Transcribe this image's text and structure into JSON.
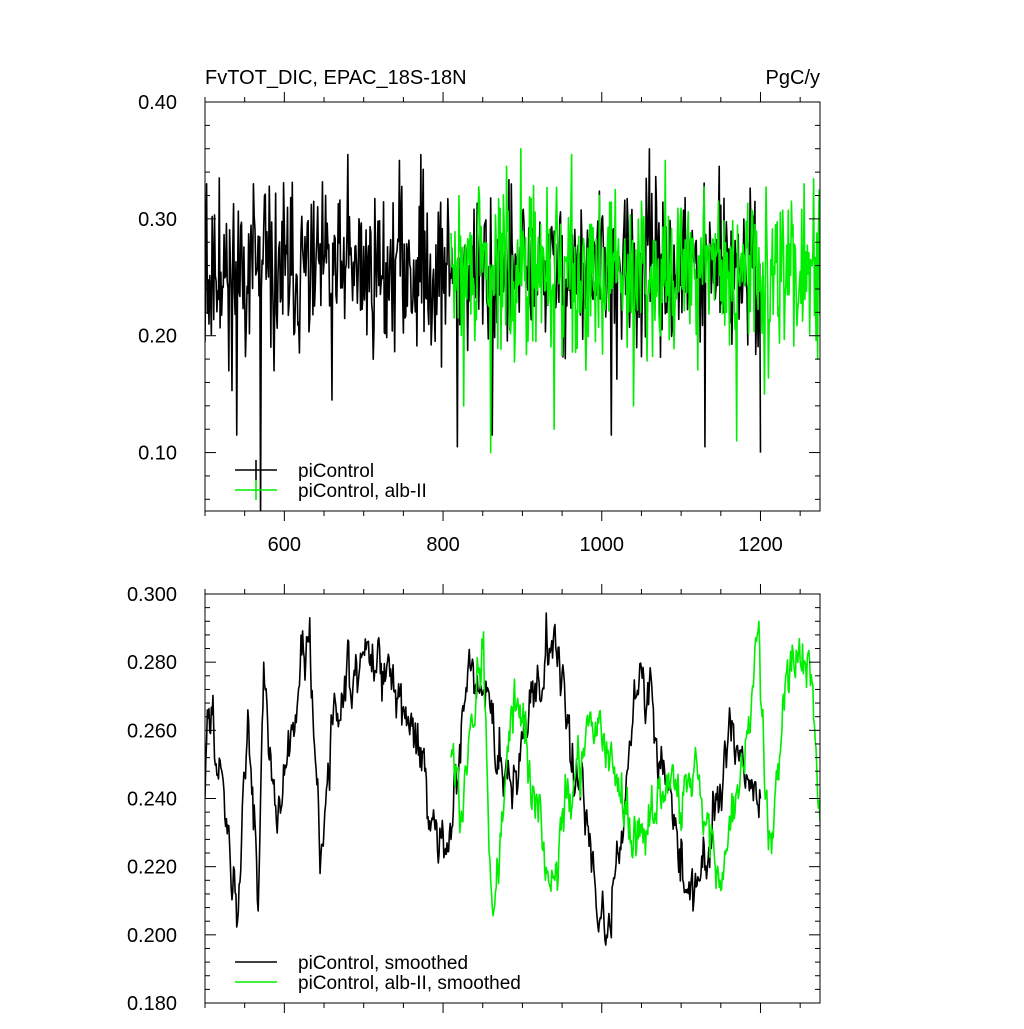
{
  "chart_data": [
    {
      "type": "line",
      "title": "FvTOT_DIC, EPAC_18S-18N",
      "units": "PgC/y",
      "xlim": [
        500,
        1275
      ],
      "ylim": [
        0.05,
        0.4
      ],
      "x_ticks": [
        600,
        800,
        1000,
        1200
      ],
      "x_tick_labels": [
        "600",
        "800",
        "1000",
        "1200"
      ],
      "y_ticks": [
        0.1,
        0.2,
        0.3,
        0.4
      ],
      "y_tick_labels": [
        "0.10",
        "0.20",
        "0.30",
        "0.40"
      ],
      "grid": false,
      "legend_placement": "bottom-left",
      "series": [
        {
          "name": "piControl",
          "color": "#000000",
          "x_range": [
            500,
            1200
          ],
          "mean": 0.255,
          "spread": 0.035,
          "seed": 11,
          "spikes": [
            {
              "x": 502,
              "y": 0.33
            },
            {
              "x": 505,
              "y": 0.21
            },
            {
              "x": 518,
              "y": 0.335
            },
            {
              "x": 530,
              "y": 0.17
            },
            {
              "x": 540,
              "y": 0.115
            },
            {
              "x": 561,
              "y": 0.33
            },
            {
              "x": 570,
              "y": 0.04
            },
            {
              "x": 575,
              "y": 0.32
            },
            {
              "x": 587,
              "y": 0.17
            },
            {
              "x": 660,
              "y": 0.145
            },
            {
              "x": 680,
              "y": 0.355
            },
            {
              "x": 745,
              "y": 0.35
            },
            {
              "x": 772,
              "y": 0.355
            },
            {
              "x": 818,
              "y": 0.105
            },
            {
              "x": 862,
              "y": 0.115
            },
            {
              "x": 1012,
              "y": 0.115
            },
            {
              "x": 1060,
              "y": 0.36
            },
            {
              "x": 1130,
              "y": 0.105
            },
            {
              "x": 1148,
              "y": 0.345
            },
            {
              "x": 1200,
              "y": 0.1
            }
          ]
        },
        {
          "name": "piControl, alb-II",
          "color": "#00ee00",
          "x_range": [
            810,
            1275
          ],
          "mean": 0.255,
          "spread": 0.035,
          "seed": 29,
          "spikes": [
            {
              "x": 826,
              "y": 0.14
            },
            {
              "x": 860,
              "y": 0.1
            },
            {
              "x": 880,
              "y": 0.345
            },
            {
              "x": 898,
              "y": 0.36
            },
            {
              "x": 940,
              "y": 0.12
            },
            {
              "x": 962,
              "y": 0.355
            },
            {
              "x": 1040,
              "y": 0.14
            },
            {
              "x": 1080,
              "y": 0.35
            },
            {
              "x": 1170,
              "y": 0.11
            },
            {
              "x": 1205,
              "y": 0.15
            },
            {
              "x": 1255,
              "y": 0.33
            },
            {
              "x": 1272,
              "y": 0.18
            }
          ]
        }
      ]
    },
    {
      "type": "line",
      "xlim": [
        500,
        1275
      ],
      "ylim": [
        0.18,
        0.3
      ],
      "x_ticks": [
        600,
        800,
        1000,
        1200
      ],
      "x_tick_labels": [],
      "y_ticks": [
        0.18,
        0.2,
        0.22,
        0.24,
        0.26,
        0.28,
        0.3
      ],
      "y_tick_labels": [
        "0.180",
        "0.200",
        "0.220",
        "0.240",
        "0.260",
        "0.280",
        "0.300"
      ],
      "grid": false,
      "legend_placement": "bottom-left",
      "series": [
        {
          "name": "piControl, smoothed",
          "color": "#000000",
          "x_range": [
            500,
            1200
          ],
          "mean": 0.25,
          "spread": 0.016,
          "seed": 47,
          "anchors": [
            {
              "x": 500,
              "y": 0.24
            },
            {
              "x": 503,
              "y": 0.266
            },
            {
              "x": 530,
              "y": 0.232
            },
            {
              "x": 541,
              "y": 0.204
            },
            {
              "x": 554,
              "y": 0.266
            },
            {
              "x": 567,
              "y": 0.207
            },
            {
              "x": 574,
              "y": 0.28
            },
            {
              "x": 590,
              "y": 0.233
            },
            {
              "x": 632,
              "y": 0.293
            },
            {
              "x": 645,
              "y": 0.218
            },
            {
              "x": 660,
              "y": 0.263
            },
            {
              "x": 705,
              "y": 0.286
            },
            {
              "x": 760,
              "y": 0.265
            },
            {
              "x": 795,
              "y": 0.224
            },
            {
              "x": 810,
              "y": 0.228
            },
            {
              "x": 832,
              "y": 0.28
            },
            {
              "x": 885,
              "y": 0.245
            },
            {
              "x": 940,
              "y": 0.29
            },
            {
              "x": 1005,
              "y": 0.197
            },
            {
              "x": 1050,
              "y": 0.278
            },
            {
              "x": 1115,
              "y": 0.207
            },
            {
              "x": 1165,
              "y": 0.262
            },
            {
              "x": 1200,
              "y": 0.24
            }
          ]
        },
        {
          "name": "piControl, alb-II, smoothed",
          "color": "#00ee00",
          "x_range": [
            810,
            1275
          ],
          "mean": 0.25,
          "spread": 0.016,
          "seed": 83,
          "anchors": [
            {
              "x": 810,
              "y": 0.252
            },
            {
              "x": 826,
              "y": 0.24
            },
            {
              "x": 850,
              "y": 0.284
            },
            {
              "x": 862,
              "y": 0.208
            },
            {
              "x": 890,
              "y": 0.275
            },
            {
              "x": 935,
              "y": 0.214
            },
            {
              "x": 985,
              "y": 0.265
            },
            {
              "x": 1040,
              "y": 0.228
            },
            {
              "x": 1120,
              "y": 0.25
            },
            {
              "x": 1150,
              "y": 0.213
            },
            {
              "x": 1185,
              "y": 0.264
            },
            {
              "x": 1198,
              "y": 0.292
            },
            {
              "x": 1210,
              "y": 0.225
            },
            {
              "x": 1240,
              "y": 0.285
            },
            {
              "x": 1265,
              "y": 0.274
            },
            {
              "x": 1275,
              "y": 0.233
            }
          ]
        }
      ]
    }
  ]
}
